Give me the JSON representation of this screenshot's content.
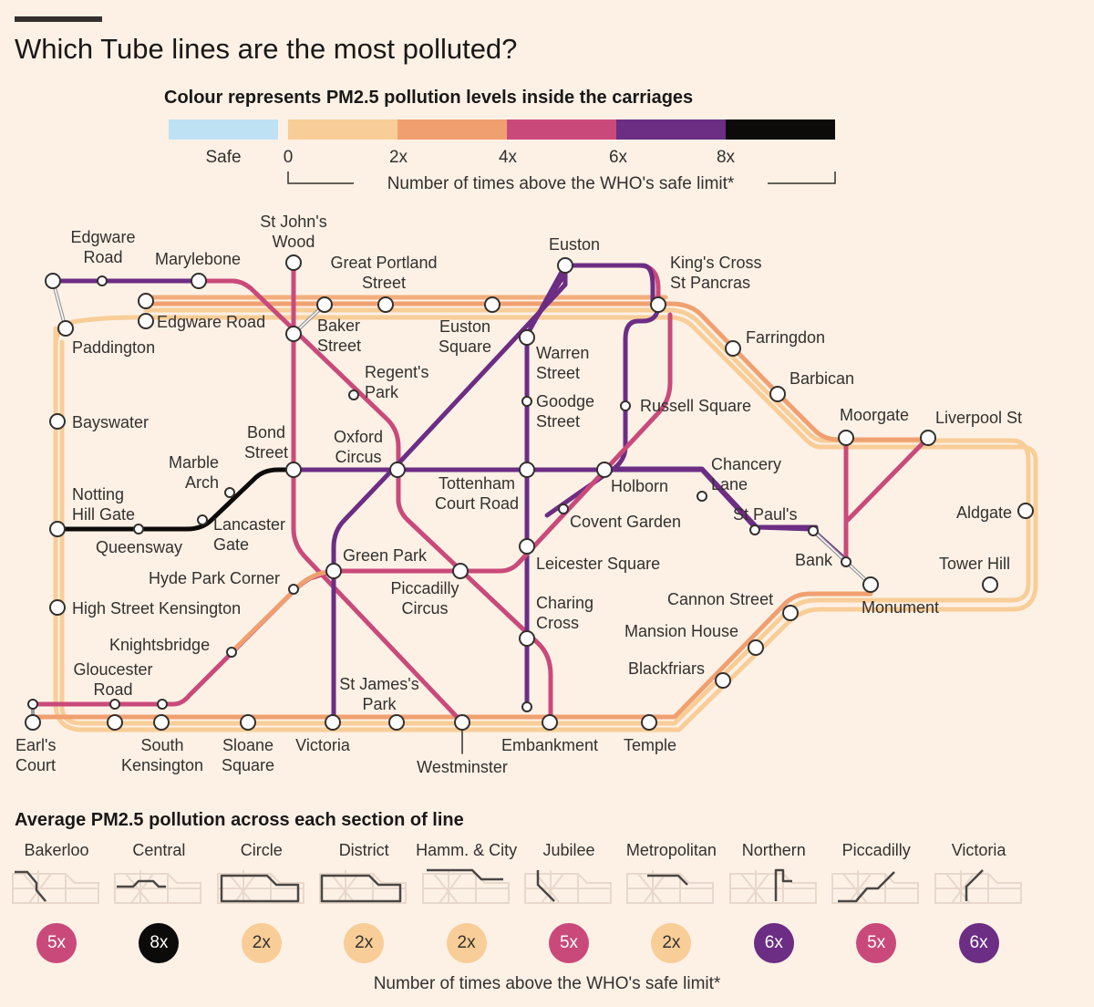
{
  "title": "Which Tube lines are the most polluted?",
  "scale": {
    "title": "Colour represents PM2.5 pollution levels inside the carriages",
    "safe_label": "Safe",
    "ticks": [
      "0",
      "2x",
      "4x",
      "6x",
      "8x"
    ],
    "axis_note": "Number of times above the WHO's safe limit*",
    "colors": {
      "safe": "#bfe1f4",
      "c0": "#f8cd97",
      "c2": "#f0a070",
      "c4": "#c94a7a",
      "c6": "#6c2d84",
      "c8": "#0d0a0a"
    }
  },
  "stations": {
    "edgware_road_bak": "Edgware\nRoad",
    "marylebone": "Marylebone",
    "st_johns_wood": "St John's\nWood",
    "great_portland": "Great Portland\nStreet",
    "euston": "Euston",
    "kings_cross": "King's Cross\nSt Pancras",
    "edgware_road_circle": "Edgware Road",
    "paddington": "Paddington",
    "baker_street": "Baker\nStreet",
    "euston_square": "Euston\nSquare",
    "warren_street": "Warren\nStreet",
    "farringdon": "Farringdon",
    "barbican": "Barbican",
    "regents_park": "Regent's\nPark",
    "goodge_street": "Goodge\nStreet",
    "russell_square": "Russell Square",
    "moorgate": "Moorgate",
    "liverpool_st": "Liverpool St",
    "bayswater": "Bayswater",
    "bond_street": "Bond\nStreet",
    "oxford_circus": "Oxford\nCircus",
    "marble_arch": "Marble\nArch",
    "tottenham_court": "Tottenham\nCourt Road",
    "holborn": "Holborn",
    "chancery_lane": "Chancery\nLane",
    "notting_hill": "Notting\nHill Gate",
    "lancaster_gate": "Lancaster\nGate",
    "covent_garden": "Covent Garden",
    "st_pauls": "St Paul's",
    "aldgate": "Aldgate",
    "queensway": "Queensway",
    "green_park": "Green Park",
    "leicester_square": "Leicester Square",
    "bank": "Bank",
    "tower_hill": "Tower Hill",
    "hyde_park_corner": "Hyde Park Corner",
    "piccadilly_circus": "Piccadilly\nCircus",
    "charing_cross": "Charing\nCross",
    "cannon_street": "Cannon Street",
    "monument": "Monument",
    "high_st_ken": "High Street Kensington",
    "mansion_house": "Mansion House",
    "knightsbridge": "Knightsbridge",
    "gloucester_road": "Gloucester\nRoad",
    "blackfriars": "Blackfriars",
    "st_james_park": "St James's\nPark",
    "earls_court": "Earl's\nCourt",
    "south_ken": "South\nKensington",
    "sloane_square": "Sloane\nSquare",
    "victoria": "Victoria",
    "embankment": "Embankment",
    "temple": "Temple",
    "westminster": "Westminster"
  },
  "summary": {
    "title": "Average PM2.5 pollution across each section of line",
    "footer": "Number of times above the WHO's safe limit*",
    "lines": [
      {
        "name": "Bakerloo",
        "value": "5x",
        "color": "#c94a7a",
        "icon": "bakerloo-route-icon"
      },
      {
        "name": "Central",
        "value": "8x",
        "color": "#0d0a0a",
        "icon": "central-route-icon"
      },
      {
        "name": "Circle",
        "value": "2x",
        "color": "#f8cd97",
        "icon": "circle-route-icon"
      },
      {
        "name": "District",
        "value": "2x",
        "color": "#f8cd97",
        "icon": "district-route-icon"
      },
      {
        "name": "Hamm. & City",
        "value": "2x",
        "color": "#f8cd97",
        "icon": "hammersmith-city-route-icon"
      },
      {
        "name": "Jubilee",
        "value": "5x",
        "color": "#c94a7a",
        "icon": "jubilee-route-icon"
      },
      {
        "name": "Metropolitan",
        "value": "2x",
        "color": "#f8cd97",
        "icon": "metropolitan-route-icon"
      },
      {
        "name": "Northern",
        "value": "6x",
        "color": "#6c2d84",
        "icon": "northern-route-icon"
      },
      {
        "name": "Piccadilly",
        "value": "5x",
        "color": "#c94a7a",
        "icon": "piccadilly-route-icon"
      },
      {
        "name": "Victoria",
        "value": "6x",
        "color": "#6c2d84",
        "icon": "victoria-route-icon"
      }
    ]
  }
}
